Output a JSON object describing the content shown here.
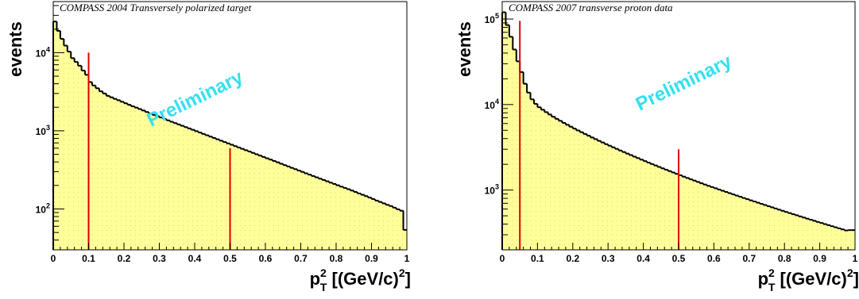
{
  "chart_data": [
    {
      "type": "histogram",
      "title": "COMPASS 2004 Transversely polarized target",
      "annotation": "Preliminary",
      "ylabel": "events",
      "xlabel": {
        "base": "p",
        "sup": "2",
        "sub": "T",
        "rest": " [(GeV/c)",
        "rest_sup": "2",
        "close": "]"
      },
      "xlim": [
        0,
        1
      ],
      "ylim": [
        30,
        45000
      ],
      "yscale": "log",
      "xticks": [
        "0",
        "0.1",
        "0.2",
        "0.3",
        "0.4",
        "0.5",
        "0.6",
        "0.7",
        "0.8",
        "0.9",
        "1"
      ],
      "yticks": [
        {
          "value": 100,
          "base": "10",
          "exp": "2"
        },
        {
          "value": 1000,
          "base": "10",
          "exp": "3"
        },
        {
          "value": 10000,
          "base": "10",
          "exp": "4"
        }
      ],
      "fill_color": "#ffff99",
      "line_color": "#000000",
      "cut_color": "#dd0000",
      "cuts": [
        {
          "x": 0.1,
          "top": 10000
        },
        {
          "x": 0.5,
          "top": 600
        }
      ],
      "bins": {
        "n": 100,
        "width": 0.01
      },
      "values": [
        25000,
        19000,
        15000,
        12300,
        10300,
        8500,
        7600,
        6800,
        5900,
        5200,
        4200,
        3800,
        3500,
        3200,
        3000,
        2800,
        2680,
        2560,
        2460,
        2350,
        2250,
        2150,
        2060,
        1980,
        1900,
        1820,
        1740,
        1670,
        1600,
        1540,
        1480,
        1420,
        1360,
        1305,
        1255,
        1207,
        1160,
        1115,
        1072,
        1030,
        990,
        950,
        913,
        877,
        843,
        810,
        778,
        747,
        718,
        690,
        663,
        637,
        612,
        588,
        565,
        543,
        522,
        501,
        482,
        463,
        445,
        428,
        411,
        395,
        379,
        364,
        350,
        336,
        323,
        310,
        298,
        286,
        275,
        264,
        254,
        244,
        235,
        226,
        217,
        209,
        201,
        193,
        186,
        179,
        172,
        165,
        158,
        152,
        146,
        140,
        134,
        128,
        123,
        118,
        113,
        109,
        104,
        99,
        95,
        54
      ]
    },
    {
      "type": "histogram",
      "title": "COMPASS 2007 transverse proton data",
      "annotation": "Preliminary",
      "ylabel": "events",
      "xlabel": {
        "base": "p",
        "sup": "2",
        "sub": "T",
        "rest": " [(GeV/c)",
        "rest_sup": "2",
        "close": "]"
      },
      "xlim": [
        0,
        1
      ],
      "ylim": [
        200,
        160000
      ],
      "yscale": "log",
      "xticks": [
        "0",
        "0.1",
        "0.2",
        "0.3",
        "0.4",
        "0.5",
        "0.6",
        "0.7",
        "0.8",
        "0.9",
        "1"
      ],
      "yticks": [
        {
          "value": 1000,
          "base": "10",
          "exp": "3"
        },
        {
          "value": 10000,
          "base": "10",
          "exp": "4"
        },
        {
          "value": 100000,
          "base": "10",
          "exp": "5"
        }
      ],
      "fill_color": "#ffff99",
      "line_color": "#000000",
      "cut_color": "#dd0000",
      "cuts": [
        {
          "x": 0.05,
          "top": 95000
        },
        {
          "x": 0.5,
          "top": 3000
        }
      ],
      "bins": {
        "n": 100,
        "width": 0.01
      },
      "values": [
        120000,
        85000,
        62000,
        44000,
        32000,
        24000,
        17500,
        13800,
        11500,
        10200,
        9300,
        8700,
        8150,
        7650,
        7200,
        6800,
        6450,
        6100,
        5800,
        5500,
        5230,
        4980,
        4750,
        4530,
        4320,
        4120,
        3940,
        3760,
        3600,
        3440,
        3300,
        3160,
        3030,
        2900,
        2785,
        2670,
        2565,
        2460,
        2365,
        2270,
        2180,
        2095,
        2015,
        1940,
        1865,
        1795,
        1730,
        1665,
        1605,
        1545,
        1490,
        1435,
        1385,
        1335,
        1290,
        1245,
        1200,
        1160,
        1120,
        1085,
        1050,
        1015,
        982,
        950,
        920,
        890,
        862,
        835,
        808,
        783,
        758,
        735,
        712,
        690,
        669,
        648,
        628,
        609,
        590,
        572,
        555,
        538,
        522,
        507,
        492,
        477,
        463,
        450,
        437,
        424,
        412,
        400,
        389,
        378,
        367,
        357,
        347,
        337,
        340,
        340
      ]
    }
  ]
}
